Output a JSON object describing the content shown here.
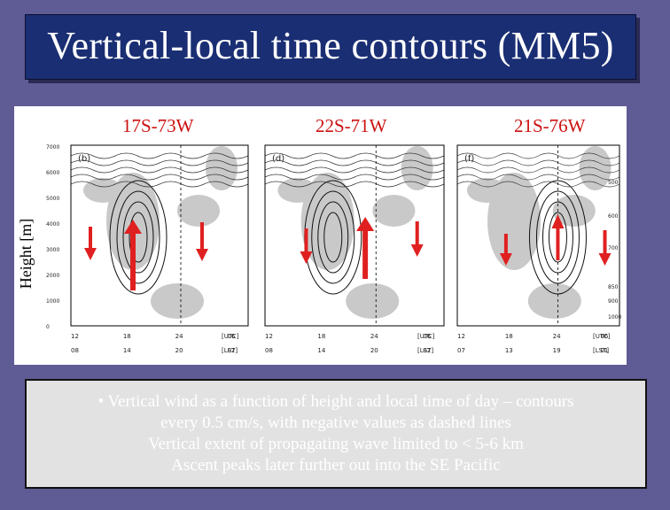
{
  "title": "Vertical-local time contours (MM5)",
  "figure": {
    "y_axis_label": "Height [m]",
    "panels": [
      {
        "station": "17S-73W",
        "letter": "(b)",
        "utc_ticks": [
          "12",
          "18",
          "24",
          "06"
        ],
        "lst_ticks": [
          "08",
          "14",
          "20",
          "02"
        ]
      },
      {
        "station": "22S-71W",
        "letter": "(d)",
        "utc_ticks": [
          "12",
          "18",
          "24",
          "06"
        ],
        "lst_ticks": [
          "08",
          "14",
          "20",
          "02"
        ]
      },
      {
        "station": "21S-76W",
        "letter": "(f)",
        "utc_ticks": [
          "12",
          "18",
          "24",
          "06"
        ],
        "lst_ticks": [
          "07",
          "13",
          "19",
          "01"
        ]
      }
    ],
    "height_ticks": [
      "7000",
      "6000",
      "5000",
      "4000",
      "3000",
      "2000",
      "1000",
      "0"
    ],
    "pressure_ticks": [
      "500",
      "600",
      "700",
      "850",
      "900",
      "1000"
    ],
    "utc_unit": "[UTC]",
    "lst_unit": "[LST]",
    "arrow_color": "#e02020",
    "arrows": {
      "panel1": [
        "down",
        "up",
        "down"
      ],
      "panel2": [
        "down",
        "up",
        "down"
      ],
      "panel3": [
        "down",
        "up",
        "down"
      ]
    }
  },
  "bullets": [
    "• Vertical wind as a function of height and local time of day – contours",
    "every 0.5 cm/s, with negative values as dashed lines",
    "Vertical extent of propagating wave limited to < 5-6 km",
    "Ascent peaks later further out into the SE Pacific"
  ]
}
